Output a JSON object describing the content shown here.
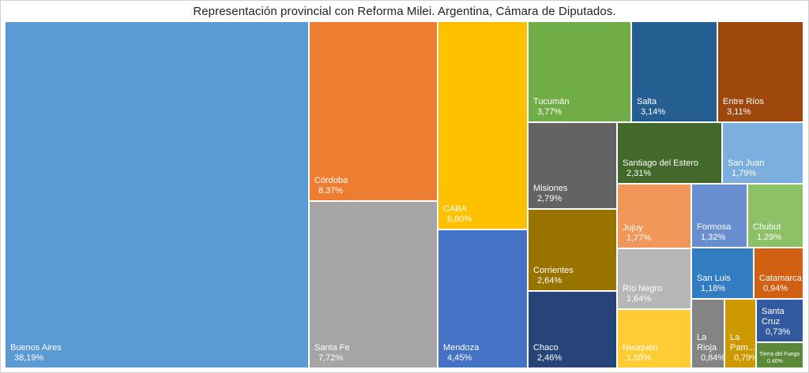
{
  "chart_data": {
    "type": "treemap",
    "title": "Representación provincial con Reforma Milei. Argentina, Cámara de Diputados.",
    "items": [
      {
        "name": "Buenos Aires",
        "label": "38,19%",
        "value": 38.19,
        "color": "#5b9bd5"
      },
      {
        "name": "Córdoba",
        "label": "8,37%",
        "value": 8.37,
        "color": "#ed7d31"
      },
      {
        "name": "Santa Fe",
        "label": "7,72%",
        "value": 7.72,
        "color": "#a5a5a5"
      },
      {
        "name": "CABA",
        "label": "6,80%",
        "value": 6.8,
        "color": "#ffc000"
      },
      {
        "name": "Mendoza",
        "label": "4,45%",
        "value": 4.45,
        "color": "#4472c4"
      },
      {
        "name": "Tucumán",
        "label": "3,77%",
        "value": 3.77,
        "color": "#70ad47"
      },
      {
        "name": "Salta",
        "label": "3,14%",
        "value": 3.14,
        "color": "#255e91"
      },
      {
        "name": "Entre Ríos",
        "label": "3,11%",
        "value": 3.11,
        "color": "#9e480e"
      },
      {
        "name": "Misiones",
        "label": "2,79%",
        "value": 2.79,
        "color": "#636363"
      },
      {
        "name": "Corrientes",
        "label": "2,64%",
        "value": 2.64,
        "color": "#997300"
      },
      {
        "name": "Chaco",
        "label": "2,46%",
        "value": 2.46,
        "color": "#264478"
      },
      {
        "name": "Santiago del Estero",
        "label": "2,31%",
        "value": 2.31,
        "color": "#43682b"
      },
      {
        "name": "San Juan",
        "label": "1,79%",
        "value": 1.79,
        "color": "#7cafdd"
      },
      {
        "name": "Jujuy",
        "label": "1,77%",
        "value": 1.77,
        "color": "#f1975a"
      },
      {
        "name": "Río Negro",
        "label": "1,64%",
        "value": 1.64,
        "color": "#b7b7b7"
      },
      {
        "name": "Neuquén",
        "label": "1,55%",
        "value": 1.55,
        "color": "#ffcd33"
      },
      {
        "name": "Formosa",
        "label": "1,32%",
        "value": 1.32,
        "color": "#698ed0"
      },
      {
        "name": "Chubut",
        "label": "1,29%",
        "value": 1.29,
        "color": "#8cc168"
      },
      {
        "name": "San Luis",
        "label": "1,18%",
        "value": 1.18,
        "color": "#327dc2"
      },
      {
        "name": "Catamarca",
        "label": "0,94%",
        "value": 0.94,
        "color": "#d26012"
      },
      {
        "name": "La Rioja",
        "label": "0,84%",
        "value": 0.84,
        "color": "#848484"
      },
      {
        "name": "La Pam...",
        "label": "0,79%",
        "value": 0.79,
        "color": "#cc9a00"
      },
      {
        "name": "Santa Cruz",
        "label": "0,73%",
        "value": 0.73,
        "color": "#335aa1"
      },
      {
        "name": "Tierra del Fuego",
        "label": "0,40%",
        "value": 0.4,
        "color": "#5a8a39"
      }
    ]
  }
}
